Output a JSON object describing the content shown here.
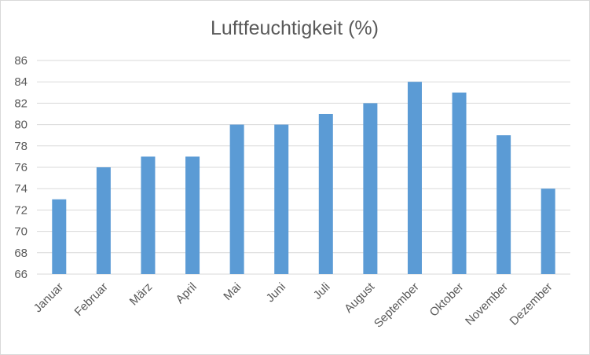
{
  "chart_data": {
    "type": "bar",
    "title": "Luftfeuchtigkeit (%)",
    "xlabel": "",
    "ylabel": "",
    "categories": [
      "Januar",
      "Februar",
      "März",
      "April",
      "Mai",
      "Juni",
      "Juli",
      "August",
      "September",
      "Oktober",
      "November",
      "Dezember"
    ],
    "values": [
      73,
      76,
      77,
      77,
      80,
      80,
      81,
      82,
      84,
      83,
      79,
      74
    ],
    "ylim": [
      66,
      86
    ],
    "yticks": [
      66,
      68,
      70,
      72,
      74,
      76,
      78,
      80,
      82,
      84,
      86
    ],
    "grid": true,
    "legend": "none",
    "bar_color": "#5b9bd5"
  }
}
